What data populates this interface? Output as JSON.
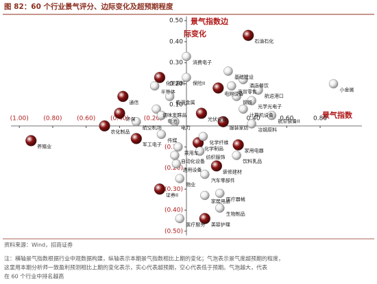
{
  "chart_data": {
    "type": "scatter",
    "title": "图 82：60 个行业景气评分、边际变化及超预期程度",
    "x_label": "景气指数",
    "y_label": [
      "景气指数边",
      "际变化"
    ],
    "source": "资料来源：Wind，招商证券",
    "note": [
      "注：横轴景气指数根据行业中观数据构建，纵轴表示本期景气指数相比上期的变化；气泡表示景气度超预期的程度，",
      "这里用本期分析师一致盈利预测相比上期的变化表示，实心代表超预期，空心代表低于预期。气泡越大，代表",
      "在 60 个行业中排名越高"
    ],
    "xlim": [
      -1.05,
      1.05
    ],
    "ylim": [
      -0.52,
      0.52
    ],
    "xticks": [
      {
        "value": -1,
        "label": "(1.00)"
      },
      {
        "value": -0.8,
        "label": "(0.80)"
      },
      {
        "value": -0.6,
        "label": "(0.60)"
      },
      {
        "value": -0.4,
        "label": "(0.40)"
      },
      {
        "value": -0.2,
        "label": "(0.20)"
      },
      {
        "value": 0.4,
        "label": "0.40"
      },
      {
        "value": 0.6,
        "label": "0.60"
      },
      {
        "value": 0.8,
        "label": "0.80"
      }
    ],
    "yticks": [
      {
        "value": 0.5,
        "label": "0.50"
      },
      {
        "value": 0.4,
        "label": "0.40"
      },
      {
        "value": 0.3,
        "label": "0.30"
      },
      {
        "value": 0.2,
        "label": "0.20"
      },
      {
        "value": 0.1,
        "label": "0.10"
      },
      {
        "value": -0.1,
        "label": "(0.10)"
      },
      {
        "value": -0.2,
        "label": "(0.20)"
      },
      {
        "value": -0.3,
        "label": "(0.30)"
      },
      {
        "value": -0.4,
        "label": "(0.40)"
      },
      {
        "value": -0.5,
        "label": "(0.50)"
      }
    ],
    "series": [
      {
        "color": "#8b1414",
        "labels": [
          "石油石化",
          "化学原料",
          "通信",
          "环保",
          "农化制品",
          "养殖业",
          "军工电子",
          "证券II",
          "美容护理",
          "装修建材",
          "家用电器",
          "电网设备",
          "光伏设备",
          "化学制品",
          "服装家纺"
        ],
        "x": [
          0.37,
          -0.16,
          -0.38,
          -0.4,
          -0.49,
          -0.93,
          -0.3,
          -0.16,
          0.11,
          0.18,
          0.31,
          0.19,
          0.09,
          0.07,
          0.22
        ],
        "values": [
          0.43,
          0.23,
          0.14,
          0.06,
          0.0,
          -0.07,
          -0.06,
          -0.3,
          -0.44,
          -0.19,
          -0.09,
          0.18,
          0.06,
          -0.08,
          0.02
        ]
      },
      {
        "color": "#eeeeee",
        "labels": [
          "小金属",
          "消费电子",
          "基础建设",
          "酒店餐饮",
          "航运港口",
          "商贸零售",
          "钢铁",
          "光学光电子",
          "计算机设备",
          "航空装备II",
          "保险II",
          "能源金属",
          "调味发酵品",
          "航空机场",
          "电池",
          "传媒",
          "电力",
          "冶钢原料",
          "饮料乳品",
          "医疗器械",
          "生物制品",
          "医疗服务",
          "汽车零部件",
          "家居用品",
          "物业",
          "通用设备",
          "自动化设备",
          "乘用车",
          "纺织服饰",
          "化学纤维",
          "半导体"
        ],
        "x": [
          0.88,
          0.0,
          0.25,
          0.34,
          0.43,
          0.27,
          0.3,
          0.39,
          0.34,
          0.51,
          0.0,
          -0.1,
          -0.18,
          -0.3,
          -0.15,
          -0.15,
          -0.07,
          0.39,
          0.3,
          0.2,
          0.2,
          -0.04,
          0.11,
          0.11,
          -0.04,
          -0.06,
          -0.07,
          -0.05,
          0.08,
          0.1,
          -0.19
        ],
        "values": [
          0.2,
          0.33,
          0.26,
          0.22,
          0.17,
          0.19,
          0.14,
          0.12,
          0.08,
          0.05,
          0.23,
          0.14,
          0.08,
          0.02,
          0.05,
          -0.04,
          0.02,
          0.01,
          -0.14,
          -0.32,
          -0.39,
          -0.44,
          -0.23,
          -0.33,
          -0.25,
          -0.18,
          -0.14,
          -0.1,
          -0.12,
          -0.05,
          0.19
        ]
      }
    ]
  }
}
